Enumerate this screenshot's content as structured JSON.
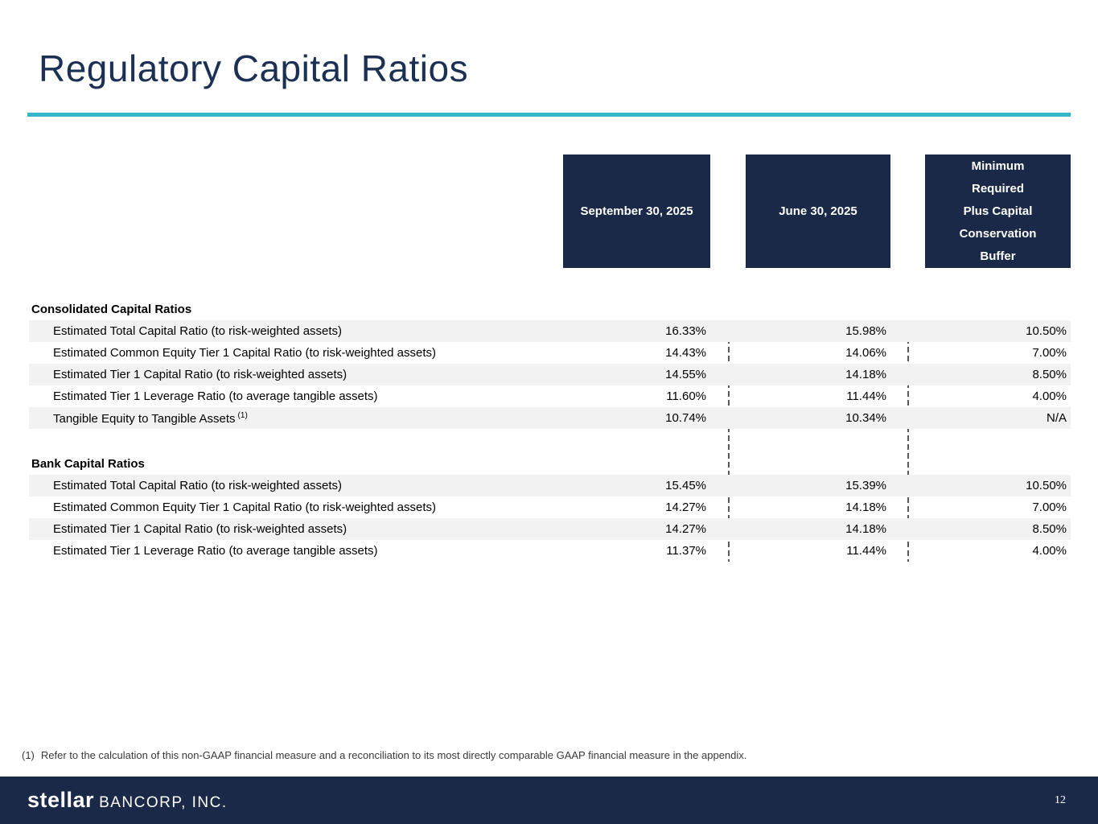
{
  "title": "Regulatory Capital Ratios",
  "table": {
    "col_headers": {
      "sep": "September 30, 2025",
      "jun": "June 30, 2025",
      "min_lines": [
        "Minimum",
        "Required",
        "Plus Capital",
        "Conservation",
        "Buffer"
      ]
    },
    "sections": [
      {
        "header": "Consolidated Capital Ratios",
        "rows": [
          {
            "label": "Estimated Total Capital Ratio (to risk-weighted assets)",
            "sep": "16.33%",
            "jun": "15.98%",
            "min": "10.50%"
          },
          {
            "label": "Estimated Common Equity Tier 1 Capital Ratio (to risk-weighted assets)",
            "sep": "14.43%",
            "jun": "14.06%",
            "min": "7.00%"
          },
          {
            "label": "Estimated Tier 1 Capital Ratio (to risk-weighted assets)",
            "sep": "14.55%",
            "jun": "14.18%",
            "min": "8.50%"
          },
          {
            "label": "Estimated Tier 1 Leverage Ratio (to average tangible assets)",
            "sep": "11.60%",
            "jun": "11.44%",
            "min": "4.00%"
          },
          {
            "label": "Tangible Equity to Tangible Assets",
            "label_sup": "(1)",
            "sep": "10.74%",
            "jun": "10.34%",
            "min": "N/A"
          }
        ]
      },
      {
        "header": "Bank Capital Ratios",
        "rows": [
          {
            "label": "Estimated Total Capital Ratio (to risk-weighted assets)",
            "sep": "15.45%",
            "jun": "15.39%",
            "min": "10.50%"
          },
          {
            "label": "Estimated Common Equity Tier 1 Capital Ratio (to risk-weighted assets)",
            "sep": "14.27%",
            "jun": "14.18%",
            "min": "7.00%"
          },
          {
            "label": "Estimated Tier 1 Capital Ratio (to risk-weighted assets)",
            "sep": "14.27%",
            "jun": "14.18%",
            "min": "8.50%"
          },
          {
            "label": "Estimated Tier 1 Leverage Ratio (to average tangible assets)",
            "sep": "11.37%",
            "jun": "11.44%",
            "min": "4.00%"
          }
        ]
      }
    ]
  },
  "footnote": {
    "marker": "(1)",
    "text": "Refer to the calculation of this non-GAAP financial measure and a reconciliation to its most directly comparable GAAP financial measure in the appendix."
  },
  "footer": {
    "logo_primary": "stellar",
    "logo_secondary": "BANCORP, INC.",
    "page_number": "12"
  },
  "colors": {
    "navy": "#1a2947",
    "teal": "#35b5c8",
    "row_stripe": "#f2f2f2"
  }
}
